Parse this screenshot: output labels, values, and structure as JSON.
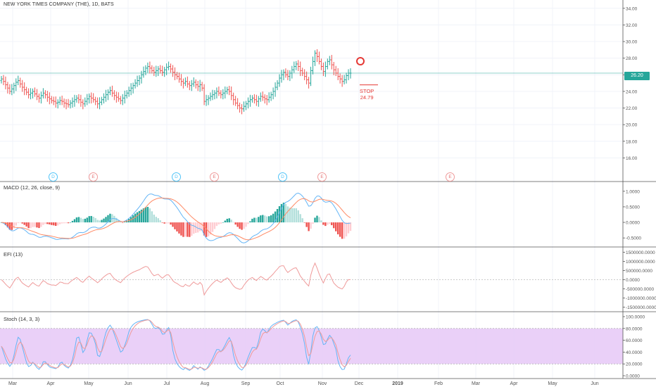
{
  "chart_data": [
    {
      "type": "candlestick",
      "title": "NEW YORK TIMES COMPANY (THE), 1D, BATS",
      "last_price_label": "26.20",
      "last_price": 26.2,
      "stop_label": "STOP",
      "stop_value": "24.79",
      "ylim": [
        14,
        35
      ],
      "yticks": [
        "16.00",
        "18.00",
        "20.00",
        "22.00",
        "24.00",
        "26.00",
        "28.00",
        "30.00",
        "32.00",
        "34.00"
      ],
      "xticks": [
        "Mar",
        "Apr",
        "May",
        "Jun",
        "Jul",
        "Aug",
        "Sep",
        "Oct",
        "Nov",
        "Dec",
        "2019",
        "Feb",
        "Mar",
        "Apr",
        "May",
        "Jun"
      ],
      "close_series": [
        25.5,
        25.2,
        24.8,
        24.4,
        24.0,
        24.3,
        24.7,
        25.1,
        25.3,
        24.9,
        24.5,
        24.2,
        23.9,
        23.6,
        23.8,
        24.0,
        23.7,
        23.4,
        23.2,
        23.5,
        23.8,
        23.6,
        23.3,
        23.1,
        22.9,
        22.8,
        22.6,
        22.7,
        22.9,
        22.8,
        22.6,
        22.5,
        22.4,
        22.6,
        22.8,
        23.0,
        23.2,
        23.0,
        22.7,
        22.5,
        22.8,
        23.1,
        23.4,
        23.2,
        23.0,
        22.8,
        22.5,
        22.7,
        23.0,
        23.3,
        23.6,
        23.9,
        24.1,
        23.8,
        23.5,
        23.3,
        23.1,
        22.9,
        23.2,
        23.5,
        23.8,
        24.1,
        24.4,
        24.7,
        25.0,
        25.3,
        25.6,
        26.0,
        26.4,
        26.8,
        27.0,
        26.8,
        26.5,
        26.3,
        26.5,
        26.7,
        26.5,
        26.3,
        26.6,
        26.9,
        27.0,
        26.7,
        26.3,
        26.0,
        25.8,
        25.5,
        25.2,
        25.0,
        25.2,
        24.9,
        24.7,
        24.9,
        25.1,
        24.8,
        24.6,
        24.8,
        24.4,
        22.8,
        23.0,
        23.2,
        23.4,
        23.6,
        23.8,
        24.0,
        23.8,
        23.6,
        23.8,
        24.0,
        24.2,
        24.0,
        23.5,
        23.0,
        22.6,
        22.3,
        22.0,
        21.9,
        22.2,
        22.5,
        22.8,
        23.0,
        23.2,
        23.0,
        22.8,
        23.1,
        23.4,
        23.3,
        23.1,
        23.0,
        23.3,
        23.6,
        24.0,
        24.5,
        25.0,
        25.6,
        26.0,
        26.3,
        26.0,
        25.8,
        26.2,
        26.6,
        27.0,
        27.3,
        27.0,
        26.5,
        26.2,
        25.8,
        25.4,
        25.0,
        26.5,
        27.6,
        28.6,
        28.2,
        27.6,
        27.0,
        26.4,
        27.0,
        27.6,
        27.8,
        27.2,
        26.6,
        26.2,
        25.8,
        25.5,
        25.2,
        25.4,
        25.9,
        26.2,
        26.2
      ],
      "series": [
        {
          "name": "Close",
          "color": "#26a69a"
        }
      ],
      "events": [
        {
          "label": "D",
          "kind": "dividend",
          "month_fraction": 0.14
        },
        {
          "label": "E",
          "kind": "earnings",
          "month_fraction": 0.25
        },
        {
          "label": "D",
          "kind": "dividend",
          "month_fraction": 0.42
        },
        {
          "label": "E",
          "kind": "earnings",
          "month_fraction": 0.51
        },
        {
          "label": "D",
          "kind": "dividend",
          "month_fraction": 0.73
        },
        {
          "label": "E",
          "kind": "earnings",
          "month_fraction": 0.84
        },
        {
          "label": "E",
          "kind": "earnings",
          "month_fraction": 1.0
        }
      ]
    },
    {
      "type": "line+bar",
      "title": "MACD (12, 26, close, 9)",
      "ylim": [
        -0.7,
        1.2
      ],
      "yticks": [
        "1.0000",
        "0.5000",
        "0.0000",
        "-0.5000"
      ],
      "series": [
        {
          "name": "MACD",
          "color": "#64b5f6"
        },
        {
          "name": "Signal",
          "color": "#ff8a65"
        },
        {
          "name": "Histogram",
          "color": "#26a69a"
        }
      ]
    },
    {
      "type": "line",
      "title": "EFI (13)",
      "ylim": [
        -1600000,
        1600000
      ],
      "yticks": [
        "1500000.0000",
        "1000000.0000",
        "500000.0000",
        "0.0000",
        "-500000.0000",
        "-1000000.0000",
        "-1500000.0000"
      ],
      "series": [
        {
          "name": "EFI",
          "color": "#ef9a9a"
        }
      ]
    },
    {
      "type": "line",
      "title": "Stoch (14, 3, 3)",
      "ylim": [
        0,
        100
      ],
      "yticks": [
        "100.0000",
        "80.0000",
        "60.0000",
        "40.0000",
        "20.0000",
        "0.0000"
      ],
      "band": [
        20,
        80
      ],
      "band_color": "#e6c8f7",
      "series": [
        {
          "name": "%K",
          "color": "#64b5f6"
        },
        {
          "name": "%D",
          "color": "#ef9a9a"
        }
      ]
    }
  ]
}
